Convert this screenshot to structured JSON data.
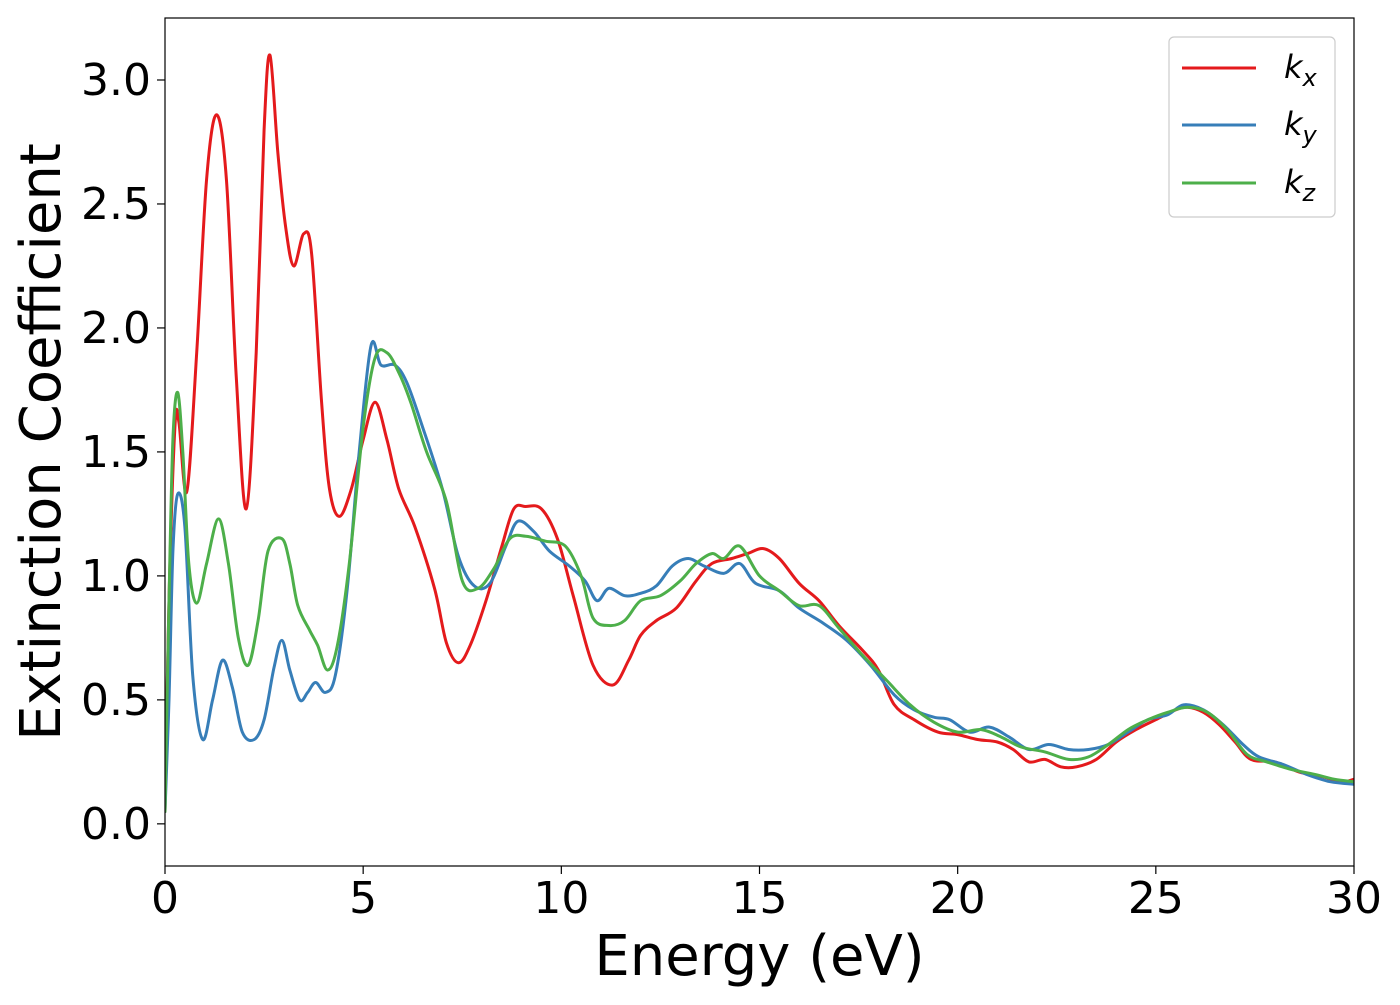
{
  "chart_data": {
    "type": "line",
    "title": "",
    "xlabel": "Energy (eV)",
    "ylabel": "Extinction Coefficient",
    "xlim": [
      0,
      30
    ],
    "ylim": [
      -0.17,
      3.25
    ],
    "xticks": [
      0,
      5,
      10,
      15,
      20,
      25,
      30
    ],
    "xtick_labels": [
      "0",
      "5",
      "10",
      "15",
      "20",
      "25",
      "30"
    ],
    "yticks": [
      0.0,
      0.5,
      1.0,
      1.5,
      2.0,
      2.5,
      3.0
    ],
    "ytick_labels": [
      "0.0",
      "0.5",
      "1.0",
      "1.5",
      "2.0",
      "2.5",
      "3.0"
    ],
    "grid": false,
    "legend": {
      "position": "top-right",
      "entries": [
        {
          "base": "k",
          "sub": "x"
        },
        {
          "base": "k",
          "sub": "y"
        },
        {
          "base": "k",
          "sub": "z"
        }
      ]
    },
    "series": [
      {
        "name": "k_x",
        "color": "#e41a1c",
        "points": [
          [
            0,
            0.05
          ],
          [
            0.1,
            0.9
          ],
          [
            0.25,
            1.6
          ],
          [
            0.35,
            1.62
          ],
          [
            0.55,
            1.34
          ],
          [
            0.8,
            1.9
          ],
          [
            1.05,
            2.6
          ],
          [
            1.3,
            2.86
          ],
          [
            1.55,
            2.6
          ],
          [
            1.8,
            1.8
          ],
          [
            2.05,
            1.27
          ],
          [
            2.3,
            1.9
          ],
          [
            2.5,
            2.8
          ],
          [
            2.65,
            3.1
          ],
          [
            2.85,
            2.7
          ],
          [
            3.05,
            2.4
          ],
          [
            3.25,
            2.25
          ],
          [
            3.5,
            2.38
          ],
          [
            3.7,
            2.3
          ],
          [
            3.95,
            1.7
          ],
          [
            4.15,
            1.35
          ],
          [
            4.4,
            1.24
          ],
          [
            4.7,
            1.35
          ],
          [
            5.0,
            1.55
          ],
          [
            5.3,
            1.7
          ],
          [
            5.6,
            1.55
          ],
          [
            5.9,
            1.35
          ],
          [
            6.3,
            1.2
          ],
          [
            6.8,
            0.95
          ],
          [
            7.1,
            0.73
          ],
          [
            7.4,
            0.65
          ],
          [
            7.7,
            0.72
          ],
          [
            8.1,
            0.9
          ],
          [
            8.5,
            1.12
          ],
          [
            8.8,
            1.27
          ],
          [
            9.1,
            1.28
          ],
          [
            9.5,
            1.27
          ],
          [
            9.9,
            1.15
          ],
          [
            10.3,
            0.92
          ],
          [
            10.8,
            0.64
          ],
          [
            11.3,
            0.56
          ],
          [
            11.7,
            0.66
          ],
          [
            12.0,
            0.76
          ],
          [
            12.4,
            0.82
          ],
          [
            12.9,
            0.87
          ],
          [
            13.4,
            0.98
          ],
          [
            13.8,
            1.05
          ],
          [
            14.3,
            1.07
          ],
          [
            14.7,
            1.09
          ],
          [
            15.1,
            1.11
          ],
          [
            15.5,
            1.07
          ],
          [
            16.0,
            0.97
          ],
          [
            16.5,
            0.9
          ],
          [
            17.0,
            0.8
          ],
          [
            17.6,
            0.7
          ],
          [
            18.0,
            0.62
          ],
          [
            18.4,
            0.48
          ],
          [
            18.9,
            0.42
          ],
          [
            19.5,
            0.37
          ],
          [
            20.0,
            0.36
          ],
          [
            20.5,
            0.34
          ],
          [
            21.0,
            0.33
          ],
          [
            21.4,
            0.3
          ],
          [
            21.8,
            0.25
          ],
          [
            22.2,
            0.26
          ],
          [
            22.6,
            0.23
          ],
          [
            23.0,
            0.23
          ],
          [
            23.5,
            0.26
          ],
          [
            24.0,
            0.33
          ],
          [
            24.5,
            0.38
          ],
          [
            25.0,
            0.42
          ],
          [
            25.5,
            0.46
          ],
          [
            25.8,
            0.47
          ],
          [
            26.2,
            0.45
          ],
          [
            26.6,
            0.4
          ],
          [
            27.0,
            0.33
          ],
          [
            27.4,
            0.26
          ],
          [
            28.0,
            0.25
          ],
          [
            28.6,
            0.21
          ],
          [
            29.2,
            0.19
          ],
          [
            29.7,
            0.17
          ],
          [
            30.0,
            0.18
          ]
        ]
      },
      {
        "name": "k_y",
        "color": "#377eb8",
        "points": [
          [
            0,
            0.05
          ],
          [
            0.1,
            0.5
          ],
          [
            0.2,
            1.1
          ],
          [
            0.32,
            1.33
          ],
          [
            0.5,
            1.2
          ],
          [
            0.7,
            0.6
          ],
          [
            0.95,
            0.34
          ],
          [
            1.2,
            0.5
          ],
          [
            1.45,
            0.66
          ],
          [
            1.7,
            0.55
          ],
          [
            1.95,
            0.37
          ],
          [
            2.25,
            0.34
          ],
          [
            2.5,
            0.42
          ],
          [
            2.75,
            0.63
          ],
          [
            2.95,
            0.74
          ],
          [
            3.15,
            0.62
          ],
          [
            3.4,
            0.5
          ],
          [
            3.6,
            0.53
          ],
          [
            3.8,
            0.57
          ],
          [
            4.05,
            0.53
          ],
          [
            4.3,
            0.6
          ],
          [
            4.6,
            0.95
          ],
          [
            4.9,
            1.5
          ],
          [
            5.2,
            1.93
          ],
          [
            5.45,
            1.85
          ],
          [
            5.8,
            1.85
          ],
          [
            6.1,
            1.78
          ],
          [
            6.5,
            1.6
          ],
          [
            7.0,
            1.35
          ],
          [
            7.4,
            1.08
          ],
          [
            7.8,
            0.96
          ],
          [
            8.2,
            0.97
          ],
          [
            8.6,
            1.12
          ],
          [
            8.9,
            1.22
          ],
          [
            9.3,
            1.18
          ],
          [
            9.7,
            1.1
          ],
          [
            10.2,
            1.04
          ],
          [
            10.6,
            0.98
          ],
          [
            10.9,
            0.9
          ],
          [
            11.2,
            0.95
          ],
          [
            11.6,
            0.92
          ],
          [
            12.0,
            0.93
          ],
          [
            12.4,
            0.96
          ],
          [
            12.8,
            1.04
          ],
          [
            13.2,
            1.07
          ],
          [
            13.6,
            1.04
          ],
          [
            14.1,
            1.01
          ],
          [
            14.5,
            1.05
          ],
          [
            14.9,
            0.97
          ],
          [
            15.5,
            0.94
          ],
          [
            16.0,
            0.87
          ],
          [
            16.6,
            0.81
          ],
          [
            17.2,
            0.74
          ],
          [
            17.8,
            0.64
          ],
          [
            18.4,
            0.52
          ],
          [
            18.9,
            0.46
          ],
          [
            19.4,
            0.43
          ],
          [
            19.8,
            0.42
          ],
          [
            20.3,
            0.37
          ],
          [
            20.8,
            0.39
          ],
          [
            21.3,
            0.35
          ],
          [
            21.8,
            0.3
          ],
          [
            22.3,
            0.32
          ],
          [
            22.8,
            0.3
          ],
          [
            23.3,
            0.3
          ],
          [
            23.8,
            0.32
          ],
          [
            24.3,
            0.37
          ],
          [
            24.8,
            0.42
          ],
          [
            25.3,
            0.44
          ],
          [
            25.7,
            0.48
          ],
          [
            26.2,
            0.46
          ],
          [
            26.7,
            0.4
          ],
          [
            27.2,
            0.32
          ],
          [
            27.6,
            0.27
          ],
          [
            28.2,
            0.24
          ],
          [
            28.8,
            0.2
          ],
          [
            29.4,
            0.17
          ],
          [
            30.0,
            0.16
          ]
        ]
      },
      {
        "name": "k_z",
        "color": "#4daf4a",
        "points": [
          [
            0,
            0.05
          ],
          [
            0.1,
            0.9
          ],
          [
            0.2,
            1.55
          ],
          [
            0.32,
            1.74
          ],
          [
            0.45,
            1.5
          ],
          [
            0.6,
            1.05
          ],
          [
            0.8,
            0.89
          ],
          [
            1.05,
            1.05
          ],
          [
            1.35,
            1.23
          ],
          [
            1.6,
            1.05
          ],
          [
            1.85,
            0.75
          ],
          [
            2.1,
            0.64
          ],
          [
            2.35,
            0.82
          ],
          [
            2.6,
            1.1
          ],
          [
            2.95,
            1.15
          ],
          [
            3.15,
            1.05
          ],
          [
            3.35,
            0.88
          ],
          [
            3.65,
            0.78
          ],
          [
            3.85,
            0.72
          ],
          [
            4.1,
            0.62
          ],
          [
            4.35,
            0.72
          ],
          [
            4.65,
            1.05
          ],
          [
            5.0,
            1.6
          ],
          [
            5.3,
            1.88
          ],
          [
            5.6,
            1.9
          ],
          [
            5.9,
            1.82
          ],
          [
            6.2,
            1.7
          ],
          [
            6.6,
            1.5
          ],
          [
            7.1,
            1.3
          ],
          [
            7.5,
            0.98
          ],
          [
            7.9,
            0.95
          ],
          [
            8.3,
            1.03
          ],
          [
            8.7,
            1.15
          ],
          [
            9.1,
            1.16
          ],
          [
            9.6,
            1.14
          ],
          [
            10.1,
            1.12
          ],
          [
            10.5,
            1.0
          ],
          [
            10.8,
            0.83
          ],
          [
            11.2,
            0.8
          ],
          [
            11.6,
            0.82
          ],
          [
            12.0,
            0.9
          ],
          [
            12.5,
            0.92
          ],
          [
            13.0,
            0.98
          ],
          [
            13.4,
            1.05
          ],
          [
            13.8,
            1.09
          ],
          [
            14.1,
            1.07
          ],
          [
            14.5,
            1.12
          ],
          [
            15.0,
            1.0
          ],
          [
            15.5,
            0.94
          ],
          [
            16.0,
            0.88
          ],
          [
            16.5,
            0.88
          ],
          [
            17.0,
            0.79
          ],
          [
            17.6,
            0.68
          ],
          [
            18.2,
            0.58
          ],
          [
            18.8,
            0.48
          ],
          [
            19.4,
            0.41
          ],
          [
            20.0,
            0.37
          ],
          [
            20.6,
            0.38
          ],
          [
            21.1,
            0.35
          ],
          [
            21.6,
            0.31
          ],
          [
            22.2,
            0.29
          ],
          [
            22.8,
            0.26
          ],
          [
            23.3,
            0.27
          ],
          [
            23.8,
            0.32
          ],
          [
            24.3,
            0.38
          ],
          [
            24.8,
            0.42
          ],
          [
            25.3,
            0.45
          ],
          [
            25.8,
            0.47
          ],
          [
            26.3,
            0.45
          ],
          [
            26.8,
            0.38
          ],
          [
            27.3,
            0.28
          ],
          [
            27.8,
            0.25
          ],
          [
            28.4,
            0.22
          ],
          [
            29.0,
            0.2
          ],
          [
            29.5,
            0.18
          ],
          [
            30.0,
            0.17
          ]
        ]
      }
    ]
  }
}
